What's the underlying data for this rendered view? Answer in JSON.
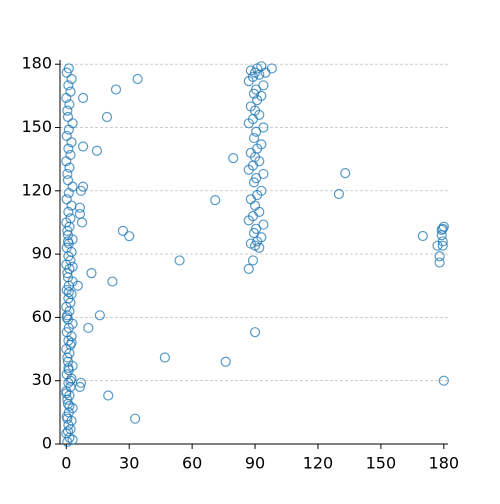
{
  "chart_data": {
    "type": "scatter",
    "color": "#1f77b4",
    "grid": "y",
    "xlim": [
      -3,
      182
    ],
    "ylim": [
      0,
      182
    ],
    "xticks": [
      0,
      30,
      60,
      90,
      120,
      150,
      180
    ],
    "yticks": [
      0,
      30,
      60,
      90,
      120,
      150,
      180
    ],
    "x": [
      0.5,
      1.5,
      0,
      2,
      1,
      2.5,
      0.2,
      1.2,
      3,
      0.8,
      0.5,
      1.5,
      0,
      2,
      1,
      2.5,
      0.2,
      1.2,
      3,
      0.8,
      0.5,
      1.5,
      0,
      2,
      1,
      2.5,
      0.2,
      1.2,
      3,
      0.8,
      0.5,
      1.5,
      0,
      2,
      1,
      2.5,
      0.2,
      1.2,
      3,
      0.8,
      0.5,
      1.5,
      0,
      2,
      1,
      2.5,
      0.2,
      1.2,
      3,
      0.8,
      0.5,
      1.5,
      0,
      2,
      1,
      2.5,
      0.2,
      1.2,
      3,
      0.8,
      0.5,
      1.5,
      0,
      2,
      1,
      2.5,
      0.2,
      1.2,
      3,
      0.8,
      0.5,
      1.5,
      0,
      2,
      1,
      2.5,
      0.2,
      1.2,
      3,
      0.8,
      0.5,
      1.5,
      0,
      2,
      1,
      2.5,
      0.2,
      1.2,
      3,
      0.8,
      87,
      89,
      92,
      90,
      88,
      91,
      93,
      89.5,
      90.5,
      94,
      87,
      89,
      92,
      90,
      88,
      91,
      93,
      89.5,
      90.5,
      94,
      87,
      89,
      92,
      90,
      88,
      91,
      93,
      89.5,
      90.5,
      94,
      87,
      89,
      92,
      90,
      88,
      91,
      93,
      89.5,
      90.5,
      94,
      87,
      89,
      92,
      90,
      88,
      91,
      93,
      8,
      23.7,
      34,
      19.4,
      8,
      14.6,
      8,
      7,
      6.5,
      6.5,
      7.5,
      27,
      30,
      54,
      12,
      22,
      5.5,
      16,
      10.5,
      47,
      76,
      7,
      6.5,
      20,
      32.8,
      71,
      79.6,
      130,
      133,
      170,
      180,
      90,
      177,
      178,
      178,
      179.5,
      180,
      179.5,
      179.5,
      179,
      179,
      98,
      95
    ],
    "values": [
      1,
      3,
      5,
      7,
      9,
      11,
      13,
      15,
      17,
      19,
      21,
      23,
      25,
      27,
      29,
      31,
      33,
      35,
      37,
      39,
      41,
      43,
      45,
      47,
      49,
      51,
      53,
      55,
      57,
      59,
      61,
      63,
      65,
      67,
      69,
      71,
      73,
      75,
      77,
      79,
      81,
      83,
      85,
      87,
      89,
      91,
      93,
      95,
      97,
      99,
      101,
      103,
      105,
      107,
      110,
      113,
      116,
      119,
      122,
      125,
      128,
      131,
      134,
      137,
      140,
      143,
      146,
      149,
      152,
      155,
      158,
      161,
      164,
      167,
      170,
      173,
      176,
      178,
      2,
      6,
      12,
      18,
      24,
      30,
      36,
      48,
      60,
      72,
      84,
      96,
      83,
      87,
      93,
      94,
      95,
      96,
      98,
      100,
      102,
      104,
      106,
      108,
      110,
      113,
      116,
      118,
      120,
      124,
      126,
      128,
      130,
      132,
      134,
      136,
      138,
      140,
      142,
      145,
      148,
      150,
      152,
      154,
      156,
      158,
      160,
      163,
      165,
      166,
      168,
      170,
      172,
      174,
      175,
      176,
      177,
      178,
      179,
      164,
      168,
      173,
      155,
      141,
      139,
      122,
      120,
      112,
      109,
      105,
      101,
      98.5,
      87,
      81,
      77,
      75,
      61,
      55,
      41,
      39,
      29,
      27,
      23,
      12,
      115.6,
      135.5,
      118.5,
      128.4,
      98.6,
      30,
      53,
      94,
      86,
      89,
      102,
      103,
      96,
      94,
      99,
      101.5,
      178,
      176
    ]
  }
}
